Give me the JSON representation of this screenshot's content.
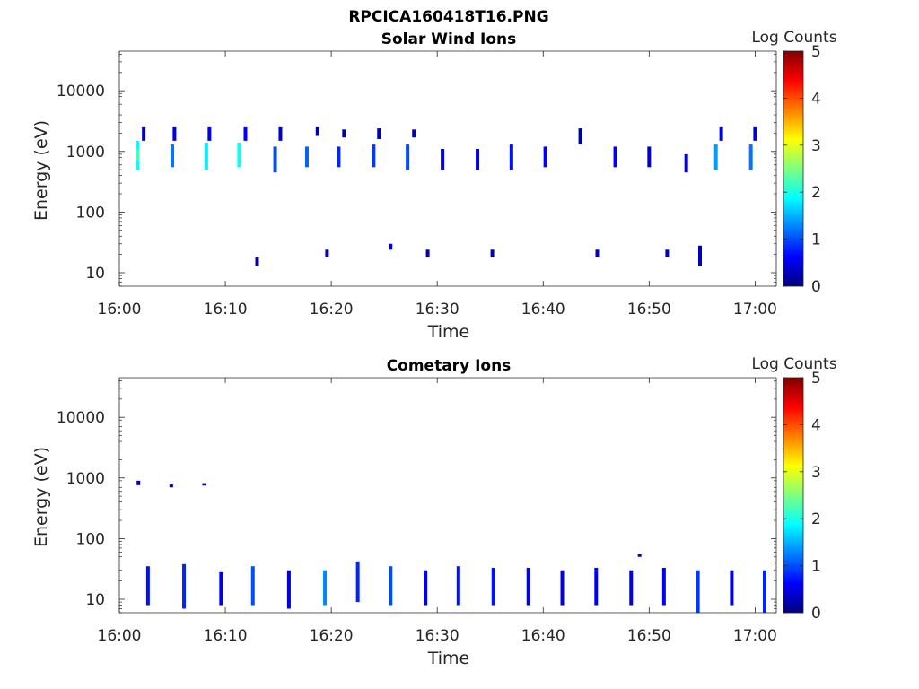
{
  "figure": {
    "filename": "RPCICA160418T16.PNG"
  },
  "colormap": [
    "#00007f",
    "#0000ff",
    "#007fff",
    "#00ffff",
    "#7fff7f",
    "#ffff00",
    "#ff7f00",
    "#ff0000",
    "#7f0000"
  ],
  "chart_data": [
    {
      "type": "heatmap",
      "title": "Solar Wind Ions",
      "xlabel": "Time",
      "ylabel": "Energy (eV)",
      "y_scale": "log",
      "ylim": [
        6,
        45000
      ],
      "xlim": [
        "16:00",
        "17:02"
      ],
      "x_ticks": [
        "16:00",
        "16:10",
        "16:20",
        "16:30",
        "16:40",
        "16:50",
        "17:00"
      ],
      "y_ticks": [
        10,
        100,
        1000,
        10000
      ],
      "y_tick_labels": [
        "10",
        "100",
        "1000",
        "10000"
      ],
      "colorbar": {
        "label": "Log Counts",
        "min": 0,
        "max": 5,
        "ticks": [
          "0",
          "1",
          "2",
          "3",
          "4",
          "5"
        ]
      },
      "cells": [
        {
          "t": 1.7,
          "e1": 500,
          "e2": 1500,
          "v": 1.9
        },
        {
          "t": 1.7,
          "e1": 700,
          "e2": 1100,
          "v": 2.2
        },
        {
          "t": 2.3,
          "e1": 1500,
          "e2": 2500,
          "v": 0.4
        },
        {
          "t": 5.0,
          "e1": 550,
          "e2": 1300,
          "v": 1.2
        },
        {
          "t": 5.2,
          "e1": 1500,
          "e2": 2500,
          "v": 0.5
        },
        {
          "t": 8.2,
          "e1": 500,
          "e2": 1400,
          "v": 1.8
        },
        {
          "t": 8.5,
          "e1": 1500,
          "e2": 2500,
          "v": 0.5
        },
        {
          "t": 11.3,
          "e1": 550,
          "e2": 1400,
          "v": 1.9
        },
        {
          "t": 11.9,
          "e1": 1500,
          "e2": 2500,
          "v": 0.6
        },
        {
          "t": 14.7,
          "e1": 450,
          "e2": 1200,
          "v": 1.0
        },
        {
          "t": 15.2,
          "e1": 1500,
          "e2": 2500,
          "v": 0.4
        },
        {
          "t": 17.7,
          "e1": 550,
          "e2": 1200,
          "v": 1.1
        },
        {
          "t": 18.7,
          "e1": 1800,
          "e2": 2500,
          "v": 0.2
        },
        {
          "t": 20.7,
          "e1": 550,
          "e2": 1200,
          "v": 0.8
        },
        {
          "t": 21.2,
          "e1": 1700,
          "e2": 2300,
          "v": 0.2
        },
        {
          "t": 24.0,
          "e1": 550,
          "e2": 1300,
          "v": 0.9
        },
        {
          "t": 24.5,
          "e1": 1600,
          "e2": 2400,
          "v": 0.3
        },
        {
          "t": 27.2,
          "e1": 500,
          "e2": 1300,
          "v": 1.0
        },
        {
          "t": 27.8,
          "e1": 1700,
          "e2": 2300,
          "v": 0.3
        },
        {
          "t": 30.5,
          "e1": 500,
          "e2": 1100,
          "v": 0.5
        },
        {
          "t": 33.8,
          "e1": 500,
          "e2": 1100,
          "v": 0.5
        },
        {
          "t": 37.0,
          "e1": 500,
          "e2": 1300,
          "v": 0.7
        },
        {
          "t": 40.2,
          "e1": 550,
          "e2": 1200,
          "v": 0.6
        },
        {
          "t": 43.5,
          "e1": 1300,
          "e2": 2400,
          "v": 0.2
        },
        {
          "t": 46.8,
          "e1": 550,
          "e2": 1200,
          "v": 0.6
        },
        {
          "t": 50.0,
          "e1": 550,
          "e2": 1200,
          "v": 0.4
        },
        {
          "t": 53.5,
          "e1": 450,
          "e2": 900,
          "v": 0.5
        },
        {
          "t": 56.3,
          "e1": 500,
          "e2": 1300,
          "v": 1.4
        },
        {
          "t": 56.8,
          "e1": 1500,
          "e2": 2500,
          "v": 0.5
        },
        {
          "t": 59.6,
          "e1": 500,
          "e2": 1300,
          "v": 1.2
        },
        {
          "t": 60.0,
          "e1": 1500,
          "e2": 2500,
          "v": 0.4
        },
        {
          "t": 13.0,
          "e1": 13,
          "e2": 18,
          "v": 0.3
        },
        {
          "t": 19.6,
          "e1": 18,
          "e2": 24,
          "v": 0.3
        },
        {
          "t": 25.6,
          "e1": 24,
          "e2": 30,
          "v": 0.4
        },
        {
          "t": 29.1,
          "e1": 18,
          "e2": 24,
          "v": 0.3
        },
        {
          "t": 35.2,
          "e1": 18,
          "e2": 24,
          "v": 0.3
        },
        {
          "t": 45.1,
          "e1": 18,
          "e2": 24,
          "v": 0.3
        },
        {
          "t": 51.7,
          "e1": 18,
          "e2": 24,
          "v": 0.3
        },
        {
          "t": 54.8,
          "e1": 13,
          "e2": 28,
          "v": 0.3
        }
      ]
    },
    {
      "type": "heatmap",
      "title": "Cometary Ions",
      "xlabel": "Time",
      "ylabel": "Energy (eV)",
      "y_scale": "log",
      "ylim": [
        6,
        45000
      ],
      "xlim": [
        "16:00",
        "17:02"
      ],
      "x_ticks": [
        "16:00",
        "16:10",
        "16:20",
        "16:30",
        "16:40",
        "16:50",
        "17:00"
      ],
      "y_ticks": [
        10,
        100,
        1000,
        10000
      ],
      "y_tick_labels": [
        "10",
        "100",
        "1000",
        "10000"
      ],
      "colorbar": {
        "label": "Log Counts",
        "min": 0,
        "max": 5,
        "ticks": [
          "0",
          "1",
          "2",
          "3",
          "4",
          "5"
        ]
      },
      "cells": [
        {
          "t": 1.8,
          "e1": 760,
          "e2": 900,
          "v": 0.3
        },
        {
          "t": 4.9,
          "e1": 700,
          "e2": 780,
          "v": 0.2
        },
        {
          "t": 8.0,
          "e1": 750,
          "e2": 820,
          "v": 0.2
        },
        {
          "t": 2.7,
          "e1": 8,
          "e2": 35,
          "v": 0.7
        },
        {
          "t": 6.1,
          "e1": 7,
          "e2": 38,
          "v": 0.8
        },
        {
          "t": 9.6,
          "e1": 8,
          "e2": 28,
          "v": 0.6
        },
        {
          "t": 12.6,
          "e1": 8,
          "e2": 35,
          "v": 1.0
        },
        {
          "t": 16.0,
          "e1": 7,
          "e2": 30,
          "v": 0.5
        },
        {
          "t": 19.4,
          "e1": 8,
          "e2": 30,
          "v": 1.3
        },
        {
          "t": 22.5,
          "e1": 9,
          "e2": 42,
          "v": 0.8
        },
        {
          "t": 25.6,
          "e1": 8,
          "e2": 35,
          "v": 1.0
        },
        {
          "t": 28.9,
          "e1": 8,
          "e2": 30,
          "v": 0.6
        },
        {
          "t": 32.0,
          "e1": 8,
          "e2": 35,
          "v": 0.7
        },
        {
          "t": 35.3,
          "e1": 8,
          "e2": 33,
          "v": 0.7
        },
        {
          "t": 38.6,
          "e1": 8,
          "e2": 33,
          "v": 0.6
        },
        {
          "t": 41.8,
          "e1": 8,
          "e2": 30,
          "v": 0.5
        },
        {
          "t": 45.0,
          "e1": 8,
          "e2": 33,
          "v": 0.6
        },
        {
          "t": 48.3,
          "e1": 8,
          "e2": 30,
          "v": 0.5
        },
        {
          "t": 51.4,
          "e1": 8,
          "e2": 33,
          "v": 0.6
        },
        {
          "t": 54.6,
          "e1": 6,
          "e2": 30,
          "v": 0.9
        },
        {
          "t": 57.8,
          "e1": 8,
          "e2": 30,
          "v": 0.5
        },
        {
          "t": 60.9,
          "e1": 6,
          "e2": 30,
          "v": 0.8
        },
        {
          "t": 49.1,
          "e1": 50,
          "e2": 55,
          "v": 0.3
        }
      ]
    }
  ]
}
